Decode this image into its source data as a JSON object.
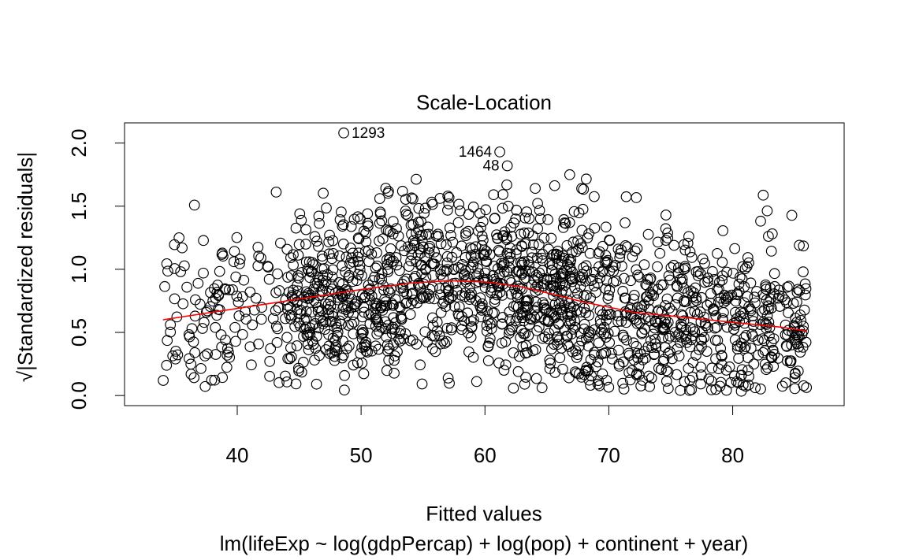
{
  "chart_data": {
    "type": "scatter",
    "title": "Scale-Location",
    "xlabel": "Fitted values",
    "sub_caption": "lm(lifeExp ~ log(gdpPercap) + log(pop) + continent + year)",
    "ylabel": "√|Standardized residuals|",
    "xlim": [
      30.9,
      89.0
    ],
    "ylim": [
      -0.08,
      2.16
    ],
    "x_ticks": [
      40,
      50,
      60,
      70,
      80
    ],
    "x_tick_labels": [
      "40",
      "50",
      "60",
      "70",
      "80"
    ],
    "y_ticks": [
      0.0,
      0.5,
      1.0,
      1.5,
      2.0
    ],
    "y_tick_labels": [
      "0.0",
      "0.5",
      "1.0",
      "1.5",
      "2.0"
    ],
    "grid": false,
    "point_style": "open-circle",
    "point_count": 1704,
    "labeled_points": [
      {
        "label": "1293",
        "x": 48.6,
        "y": 2.08
      },
      {
        "label": "1464",
        "x": 61.2,
        "y": 1.93
      },
      {
        "label": "48",
        "x": 61.8,
        "y": 1.82
      }
    ],
    "smoother": {
      "name": "loess",
      "color": "#ff0000",
      "x": [
        34.0,
        38.0,
        42.0,
        46.0,
        50.0,
        54.0,
        57.0,
        60.0,
        63.0,
        66.0,
        68.0,
        70.0,
        72.0,
        75.0,
        78.0,
        81.0,
        84.0,
        86.0
      ],
      "y": [
        0.6,
        0.66,
        0.72,
        0.78,
        0.84,
        0.89,
        0.91,
        0.9,
        0.86,
        0.79,
        0.74,
        0.7,
        0.66,
        0.63,
        0.6,
        0.57,
        0.54,
        0.51
      ]
    },
    "colors": {
      "points": "#000000",
      "smoother": "#ff0000"
    }
  }
}
